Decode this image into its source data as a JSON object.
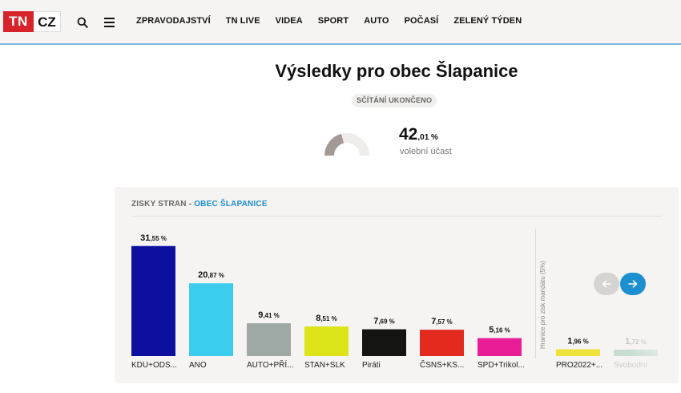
{
  "header": {
    "logo_left": "TN",
    "logo_right": "CZ",
    "nav": [
      "ZPRAVODAJSTVÍ",
      "TN LIVE",
      "VIDEA",
      "SPORT",
      "AUTO",
      "POČASÍ",
      "ZELENÝ TÝDEN"
    ]
  },
  "title": "Výsledky pro obec Šlapanice",
  "status": "SČÍTÁNÍ UKONČENO",
  "turnout": {
    "value": 42.01,
    "big": "42",
    "small": ",01 %",
    "label": "volební účast"
  },
  "panel": {
    "heading_prefix": "ZISKY STRAN - ",
    "heading_accent": "OBEC ŠLAPANICE",
    "threshold_label": "Hranice pro zisk mandátu (5%)"
  },
  "colors": {
    "accent": "#1c8fd1",
    "gauge_fill": "#a39a95",
    "gauge_track": "#efedeb"
  },
  "chart_data": {
    "type": "bar",
    "categories": [
      "KDU+ODS...",
      "ANO",
      "AUTO+PŘÍ...",
      "STAN+SLK",
      "Piráti",
      "ČSNS+KS...",
      "SPD+Trikol...",
      "PRO2022+...",
      "Svobodní"
    ],
    "values": [
      31.55,
      20.87,
      9.41,
      8.51,
      7.69,
      7.57,
      5.16,
      1.96,
      1.72
    ],
    "value_labels": [
      {
        "int": "31",
        "dec": ",55 %"
      },
      {
        "int": "20",
        "dec": ",87 %"
      },
      {
        "int": "9",
        "dec": ",41 %"
      },
      {
        "int": "8",
        "dec": ",51 %"
      },
      {
        "int": "7",
        "dec": ",69 %"
      },
      {
        "int": "7",
        "dec": ",57 %"
      },
      {
        "int": "5",
        "dec": ",16 %"
      },
      {
        "int": "1",
        "dec": ",96 %"
      },
      {
        "int": "1",
        "dec": ",72 %"
      }
    ],
    "colors": [
      "#0d0f9e",
      "#3ccdee",
      "#9ea8a5",
      "#dde519",
      "#141412",
      "#e32a1e",
      "#e91e97",
      "#ede33b",
      "#8fc3a6"
    ]
  }
}
